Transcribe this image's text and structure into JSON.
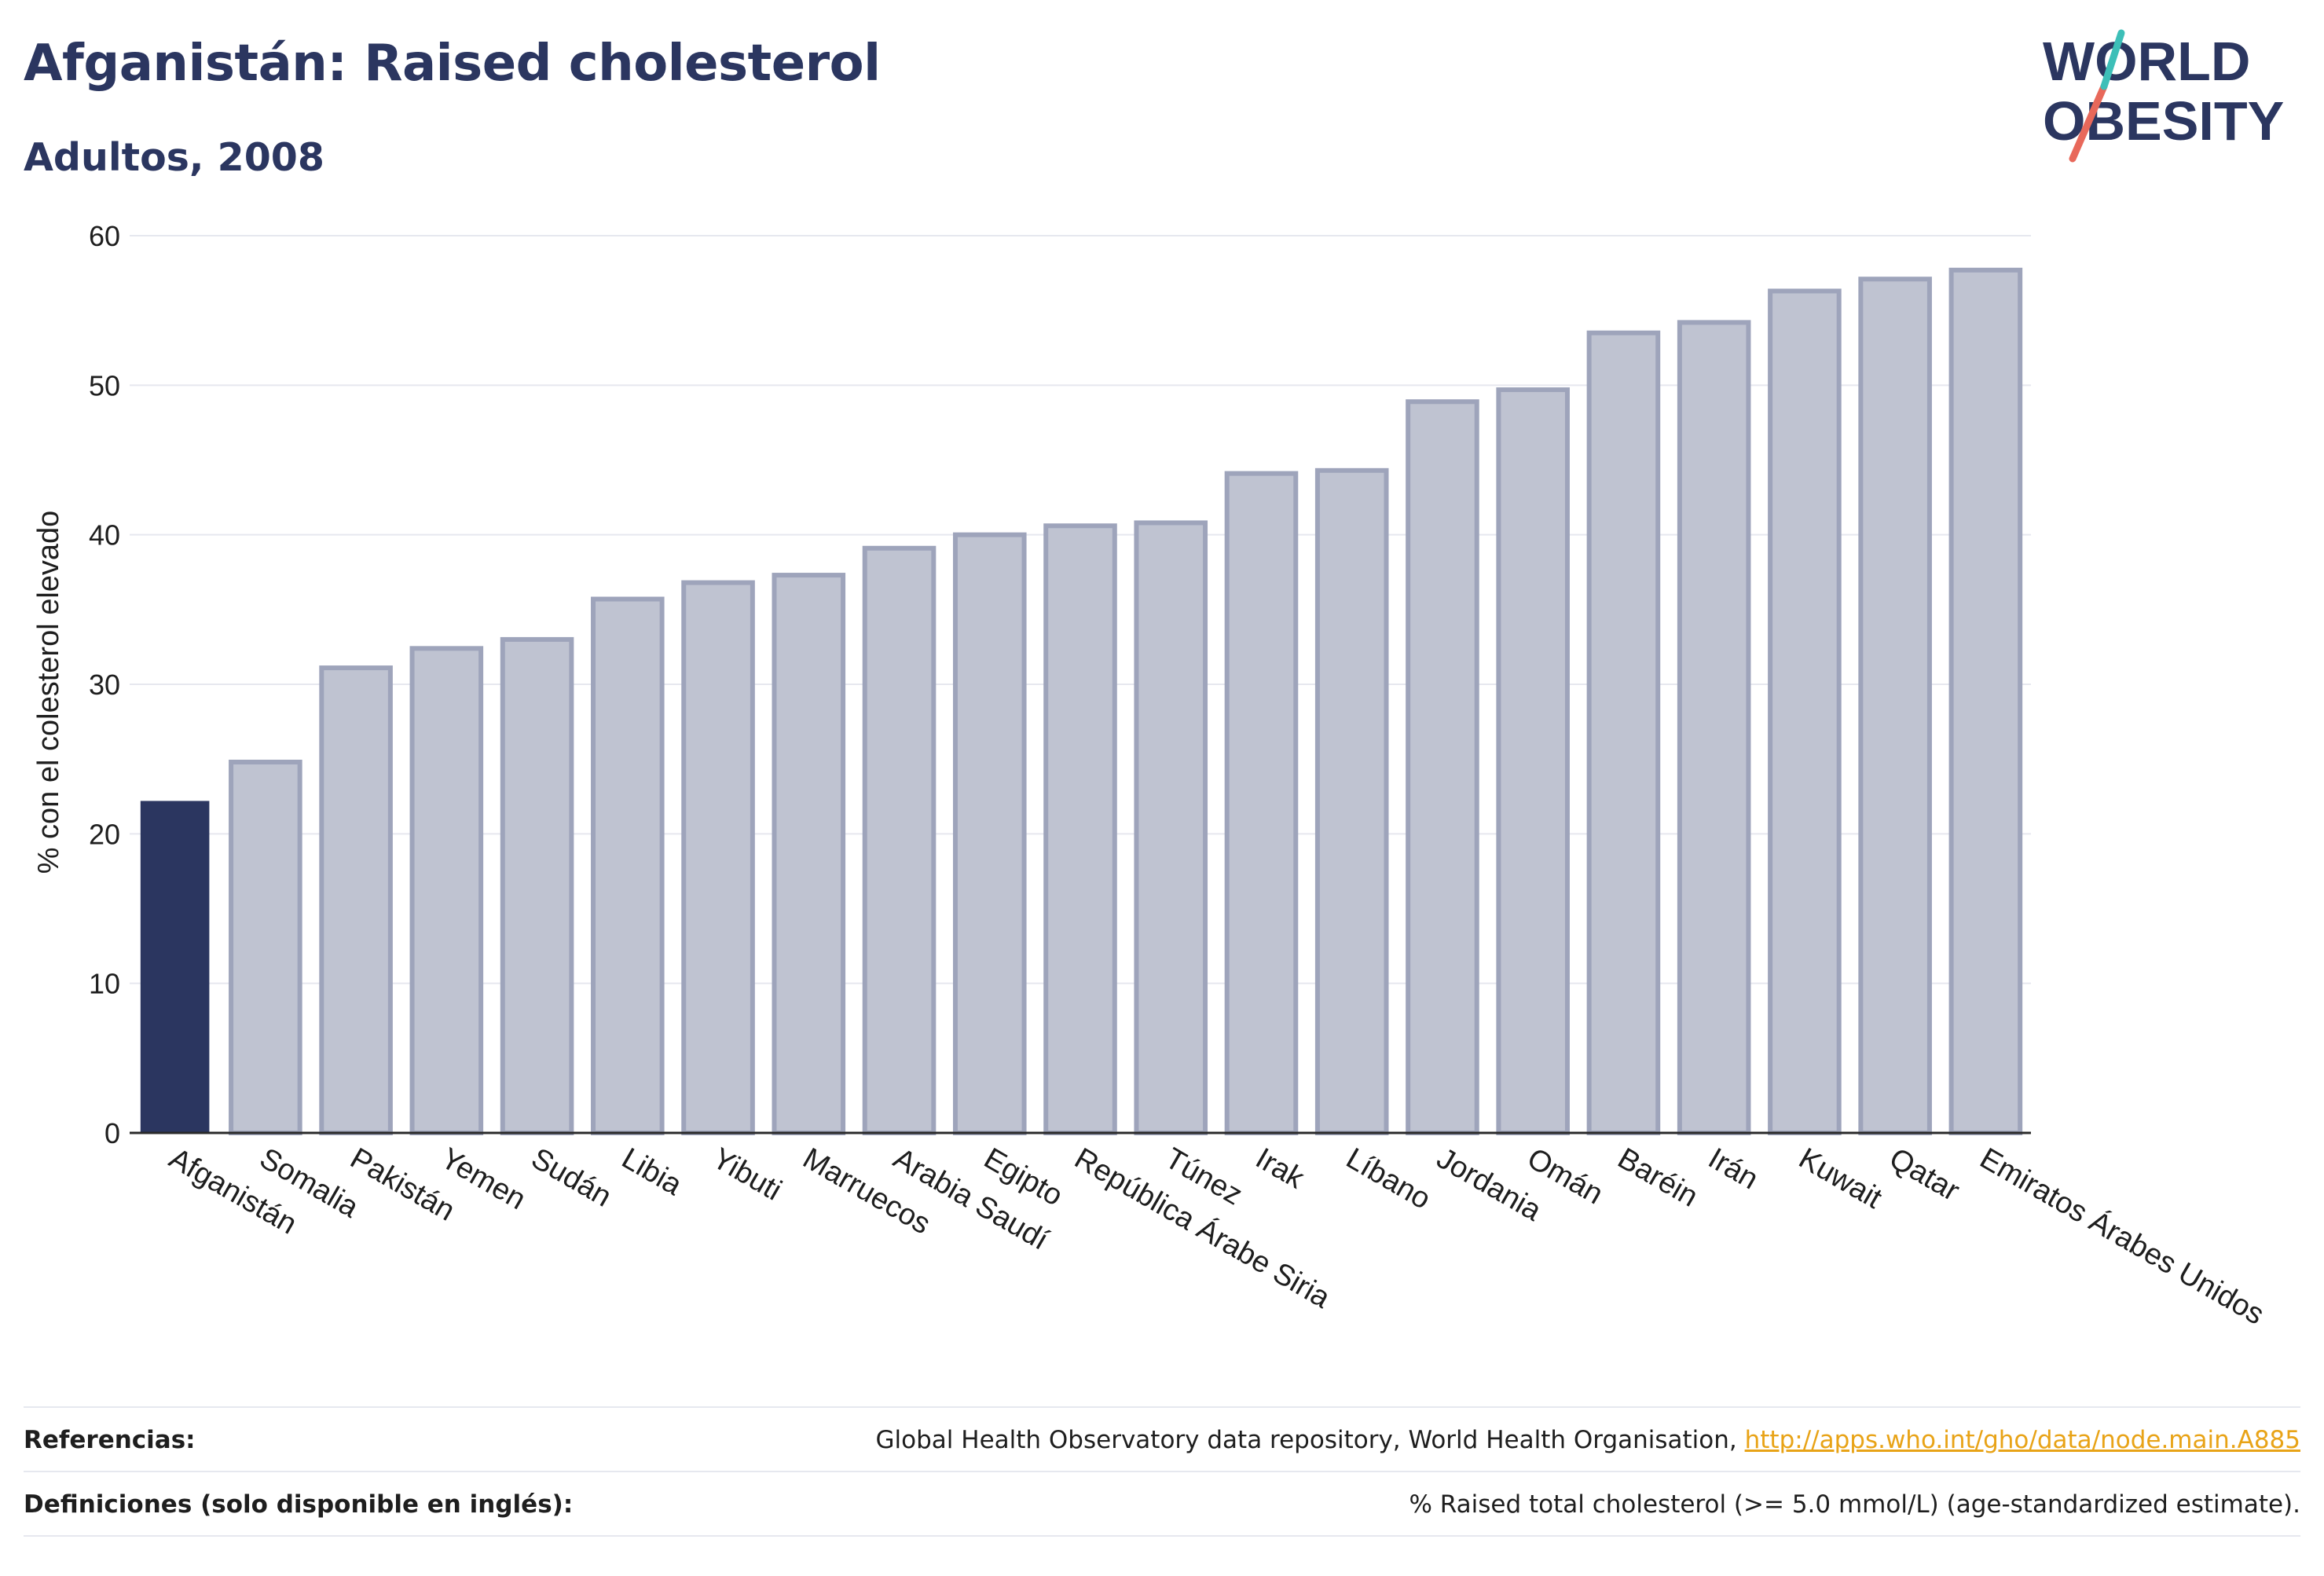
{
  "header": {
    "title": "Afganistán: Raised cholesterol",
    "subtitle": "Adultos, 2008"
  },
  "logo": {
    "line1": "WORLD",
    "line2": "OBESITY",
    "text_color": "#2b3660",
    "slash_colors": [
      "#e8685a",
      "#3dbfb8"
    ]
  },
  "chart_data": {
    "type": "bar",
    "title": "Afganistán: Raised cholesterol",
    "subtitle": "Adultos, 2008",
    "xlabel": "",
    "ylabel": "% con el colesterol elevado",
    "ylim": [
      0,
      60
    ],
    "yticks": [
      0,
      10,
      20,
      30,
      40,
      50,
      60
    ],
    "grid": true,
    "highlight_color": "#2b3660",
    "bar_fill": "#bfc3d1",
    "bar_stroke": "#9ea4bb",
    "highlight_index": 0,
    "categories": [
      "Afganistán",
      "Somalia",
      "Pakistán",
      "Yemen",
      "Sudán",
      "Libia",
      "Yibuti",
      "Marruecos",
      "Arabia Saudí",
      "Egipto",
      "República Árabe Siria",
      "Túnez",
      "Irak",
      "Líbano",
      "Jordania",
      "Omán",
      "Baréin",
      "Irán",
      "Kuwait",
      "Qatar",
      "Emiratos Árabes Unidos"
    ],
    "values": [
      22.2,
      24.8,
      31.1,
      32.4,
      33.0,
      35.7,
      36.8,
      37.3,
      39.1,
      40.0,
      40.6,
      40.8,
      44.1,
      44.3,
      48.9,
      49.7,
      53.5,
      54.2,
      56.3,
      57.1,
      57.7
    ]
  },
  "footer": {
    "references_label": "Referencias:",
    "references_text": "Global Health Observatory data repository, World Health Organisation,",
    "references_link": "http://apps.who.int/gho/data/node.main.A885",
    "definitions_label": "Definiciones (solo disponible en inglés):",
    "definitions_text": "% Raised total cholesterol (>= 5.0 mmol/L) (age-standardized estimate)."
  }
}
